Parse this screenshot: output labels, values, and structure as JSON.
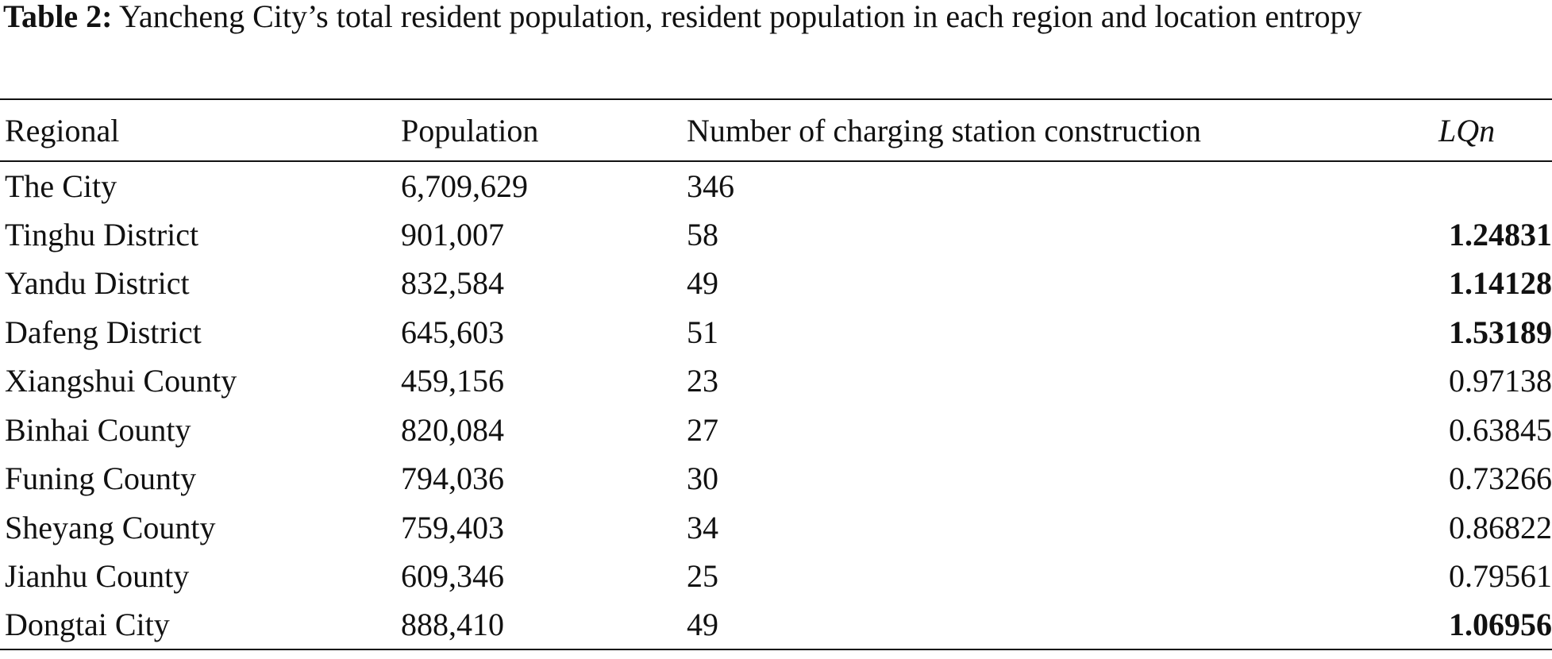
{
  "caption": {
    "label": "Table 2:",
    "text": " Yancheng City’s total resident population, resident population in each region and location entropy"
  },
  "table": {
    "headers": [
      "Regional",
      "Population",
      "Number of charging station construction",
      "LQn"
    ],
    "rows": [
      {
        "region": "The City",
        "population": "6,709,629",
        "stations": "346",
        "lqn": "",
        "bold": false
      },
      {
        "region": "Tinghu District",
        "population": "901,007",
        "stations": "58",
        "lqn": "1.24831",
        "bold": true
      },
      {
        "region": "Yandu District",
        "population": "832,584",
        "stations": "49",
        "lqn": "1.14128",
        "bold": true
      },
      {
        "region": "Dafeng District",
        "population": "645,603",
        "stations": "51",
        "lqn": "1.53189",
        "bold": true
      },
      {
        "region": "Xiangshui County",
        "population": "459,156",
        "stations": "23",
        "lqn": "0.97138",
        "bold": false
      },
      {
        "region": "Binhai County",
        "population": "820,084",
        "stations": "27",
        "lqn": "0.63845",
        "bold": false
      },
      {
        "region": "Funing County",
        "population": "794,036",
        "stations": "30",
        "lqn": "0.73266",
        "bold": false
      },
      {
        "region": "Sheyang County",
        "population": "759,403",
        "stations": "34",
        "lqn": "0.86822",
        "bold": false
      },
      {
        "region": "Jianhu County",
        "population": "609,346",
        "stations": "25",
        "lqn": "0.79561",
        "bold": false
      },
      {
        "region": "Dongtai City",
        "population": "888,410",
        "stations": "49",
        "lqn": "1.06956",
        "bold": true
      }
    ]
  }
}
